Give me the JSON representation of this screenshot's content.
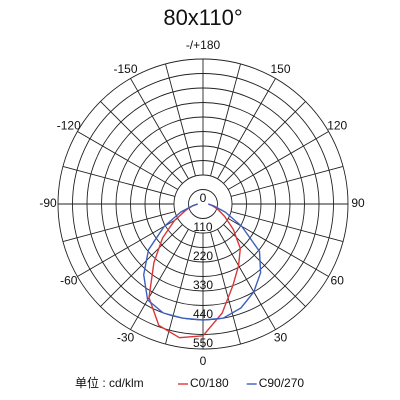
{
  "chart_data": {
    "type": "polar",
    "title": "80x110°",
    "unit_label": "单位 : cd/klm",
    "theta": [
      -90,
      -80,
      -70,
      -60,
      -50,
      -40,
      -30,
      -20,
      -10,
      0,
      10,
      20,
      30,
      40,
      50,
      60,
      70,
      80,
      90
    ],
    "series": [
      {
        "name": "C0/180",
        "color": "#d9383a",
        "values": [
          20,
          40,
          70,
          125,
          200,
          290,
          410,
          490,
          515,
          500,
          420,
          330,
          270,
          220,
          150,
          95,
          60,
          35,
          20
        ]
      },
      {
        "name": "C90/270",
        "color": "#3d5fc0",
        "values": [
          20,
          40,
          90,
          170,
          270,
          350,
          420,
          440,
          440,
          440,
          440,
          420,
          385,
          340,
          280,
          170,
          90,
          40,
          20
        ]
      }
    ],
    "rlim": [
      0,
      550
    ],
    "rticks": [
      0,
      110,
      220,
      330,
      440,
      550
    ],
    "thetaticks": [
      {
        "value": 180,
        "label": "-/+180"
      },
      150,
      {
        "value": -150,
        "label": "-150"
      },
      120,
      {
        "value": -120,
        "label": "-120"
      },
      90,
      {
        "value": -90,
        "label": "-90"
      },
      60,
      {
        "value": -60,
        "label": "-60"
      },
      30,
      {
        "value": -30,
        "label": "-30"
      },
      0
    ],
    "spoke_step": 15,
    "grid": true
  }
}
